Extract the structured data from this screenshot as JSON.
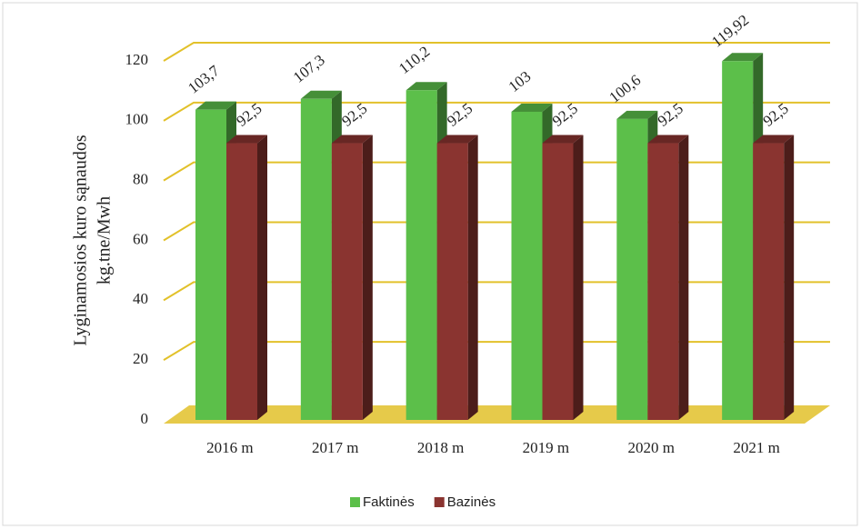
{
  "chart_data": {
    "type": "bar3d",
    "ylabel": [
      "Lyginamosios kuro sąnaudos",
      "kg.tne/Mwh"
    ],
    "categories": [
      "2016 m",
      "2017 m",
      "2018 m",
      "2019 m",
      "2020 m",
      "2021 m"
    ],
    "series": [
      {
        "name": "Faktinės",
        "color": "#5cbf4a",
        "values": [
          103.7,
          107.3,
          110.2,
          103,
          100.6,
          119.92
        ],
        "value_labels": [
          "103,7",
          "107,3",
          "110,2",
          "103",
          "100,6",
          "119,92"
        ]
      },
      {
        "name": "Bazinės",
        "color": "#8a3430",
        "values": [
          92.5,
          92.5,
          92.5,
          92.5,
          92.5,
          92.5
        ],
        "value_labels": [
          "92,5",
          "92,5",
          "92,5",
          "92,5",
          "92,5",
          "92,5"
        ]
      }
    ],
    "ylim": [
      0,
      120
    ],
    "yticks": [
      0,
      20,
      40,
      60,
      80,
      100,
      120
    ],
    "grid": true,
    "grid_color": "#e2c12a",
    "legend": "bottom"
  }
}
